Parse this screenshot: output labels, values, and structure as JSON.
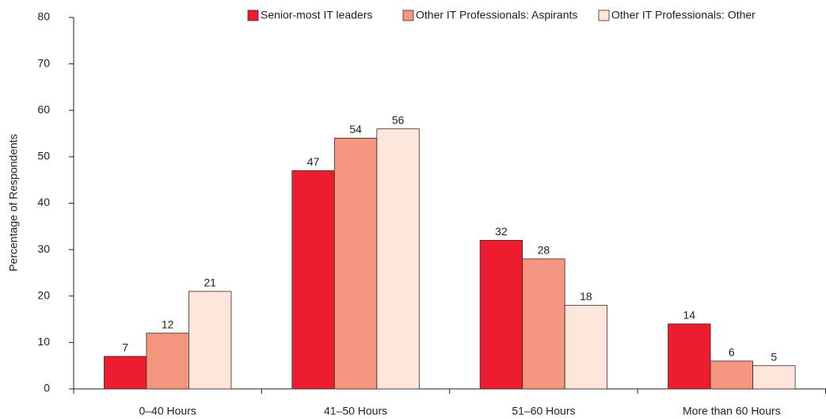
{
  "chart_data": {
    "type": "bar",
    "y_label": "Percentage of Respondents",
    "categories": [
      "0–40 Hours",
      "41–50 Hours",
      "51–60 Hours",
      "More than 60 Hours"
    ],
    "series": [
      {
        "name": "Senior-most IT leaders",
        "color": "#ed1c2e",
        "values": [
          7,
          47,
          32,
          14
        ]
      },
      {
        "name": "Other IT Professionals: Aspirants",
        "color": "#f4967e",
        "values": [
          12,
          54,
          28,
          6
        ]
      },
      {
        "name": "Other IT Professionals: Other",
        "color": "#fde5dc",
        "values": [
          21,
          56,
          18,
          5
        ]
      }
    ],
    "ylim": [
      0,
      80
    ],
    "yticks": [
      0,
      10,
      20,
      30,
      40,
      50,
      60,
      70,
      80
    ],
    "legend": "top",
    "grid": false
  }
}
